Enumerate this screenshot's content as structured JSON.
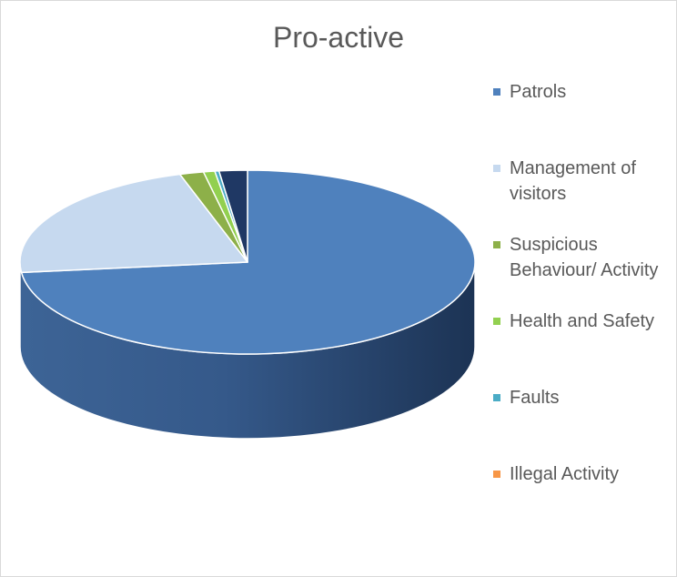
{
  "chart_data": {
    "type": "pie",
    "style": "3d",
    "title": "Pro-active",
    "legend_position": "right",
    "categories": [
      "Patrols",
      "Management of visitors",
      "Suspicious Behaviour/ Activity",
      "Health and Safety",
      "Faults",
      "Illegal Activity"
    ],
    "values": [
      73.2,
      22.0,
      1.7,
      0.8,
      0.3,
      2.0
    ],
    "colors": [
      "#4f81bd",
      "#c6d9ef",
      "#8db049",
      "#92d050",
      "#4bacc6",
      "#f79646",
      "#1f3864"
    ],
    "legend": [
      {
        "label": "Patrols",
        "color": "#4f81bd"
      },
      {
        "label": "Management of visitors",
        "color": "#c6d9ef"
      },
      {
        "label": "Suspicious Behaviour/ Activity",
        "color": "#8db049"
      },
      {
        "label": "Health and Safety",
        "color": "#92d050"
      },
      {
        "label": "Faults",
        "color": "#4bacc6"
      },
      {
        "label": "Illegal Activity",
        "color": "#f79646"
      }
    ]
  }
}
